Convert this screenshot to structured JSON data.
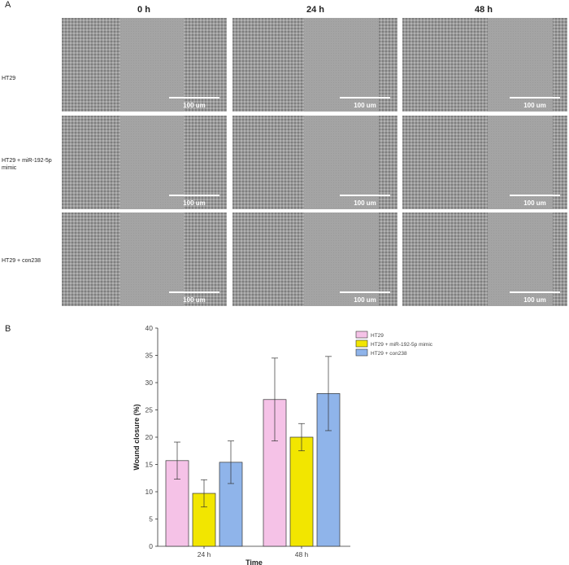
{
  "panel_a": {
    "letter": "A",
    "columns": [
      "0 h",
      "24 h",
      "48 h"
    ],
    "rows": [
      "HT29",
      "HT29 + miR-192-5p mimic",
      "HT29 + con238"
    ],
    "scale_label": "100 um"
  },
  "panel_b": {
    "letter": "B"
  },
  "chart_data": {
    "type": "bar",
    "categories": [
      "24 h",
      "48 h"
    ],
    "series": [
      {
        "name": "HT29",
        "values": [
          15.7,
          26.9
        ],
        "errors": [
          3.4,
          7.6
        ],
        "color": "#f5c2e7"
      },
      {
        "name": "HT29 + miR-192-5p mimic",
        "values": [
          9.7,
          20.0
        ],
        "errors": [
          2.5,
          2.5
        ],
        "color": "#f2e600"
      },
      {
        "name": "HT29 + con238",
        "values": [
          15.4,
          28.0
        ],
        "errors": [
          3.9,
          6.8
        ],
        "color": "#8fb4ea"
      }
    ],
    "xlabel": "Time",
    "ylabel": "Wound closure (%)",
    "ylim": [
      0,
      40
    ],
    "yticks": [
      0,
      5,
      10,
      15,
      20,
      25,
      30,
      35,
      40
    ],
    "legend": "top-right",
    "grid": false
  }
}
